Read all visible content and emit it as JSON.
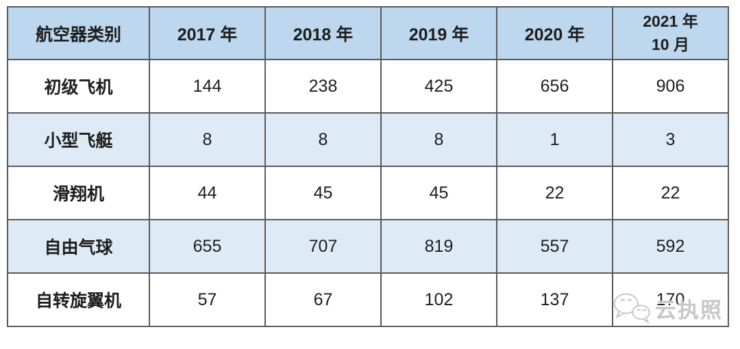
{
  "colors": {
    "header_bg": "#BDD7EE",
    "stripe_bg": "#DEEAF6",
    "row_bg": "#FFFFFF",
    "border": "#595959",
    "text": "#1D1D1D",
    "watermark": "#C7C7C7"
  },
  "chart_data": {
    "type": "table",
    "title": "",
    "columns": [
      "航空器类别",
      "2017 年",
      "2018 年",
      "2019 年",
      "2020 年",
      "2021 年 10 月"
    ],
    "rows": [
      [
        "初级飞机",
        144,
        238,
        425,
        656,
        906
      ],
      [
        "小型飞艇",
        8,
        8,
        8,
        1,
        3
      ],
      [
        "滑翔机",
        44,
        45,
        45,
        22,
        22
      ],
      [
        "自由气球",
        655,
        707,
        819,
        557,
        592
      ],
      [
        "自转旋翼机",
        57,
        67,
        102,
        137,
        170
      ]
    ]
  },
  "table": {
    "header": [
      {
        "lines": [
          "航空器类别"
        ]
      },
      {
        "lines": [
          "2017 年"
        ]
      },
      {
        "lines": [
          "2018 年"
        ]
      },
      {
        "lines": [
          "2019 年"
        ]
      },
      {
        "lines": [
          "2020 年"
        ]
      },
      {
        "lines": [
          "2021 年",
          "10 月"
        ]
      }
    ],
    "rows": [
      {
        "label": "初级飞机",
        "values": [
          "144",
          "238",
          "425",
          "656",
          "906"
        ],
        "striped": false
      },
      {
        "label": "小型飞艇",
        "values": [
          "8",
          "8",
          "8",
          "1",
          "3"
        ],
        "striped": true
      },
      {
        "label": "滑翔机",
        "values": [
          "44",
          "45",
          "45",
          "22",
          "22"
        ],
        "striped": false
      },
      {
        "label": "自由气球",
        "values": [
          "655",
          "707",
          "819",
          "557",
          "592"
        ],
        "striped": true
      },
      {
        "label": "自转旋翼机",
        "values": [
          "57",
          "67",
          "102",
          "137",
          "170"
        ],
        "striped": false
      }
    ]
  },
  "watermark": {
    "icon": "wechat-icon",
    "text": "云执照"
  }
}
